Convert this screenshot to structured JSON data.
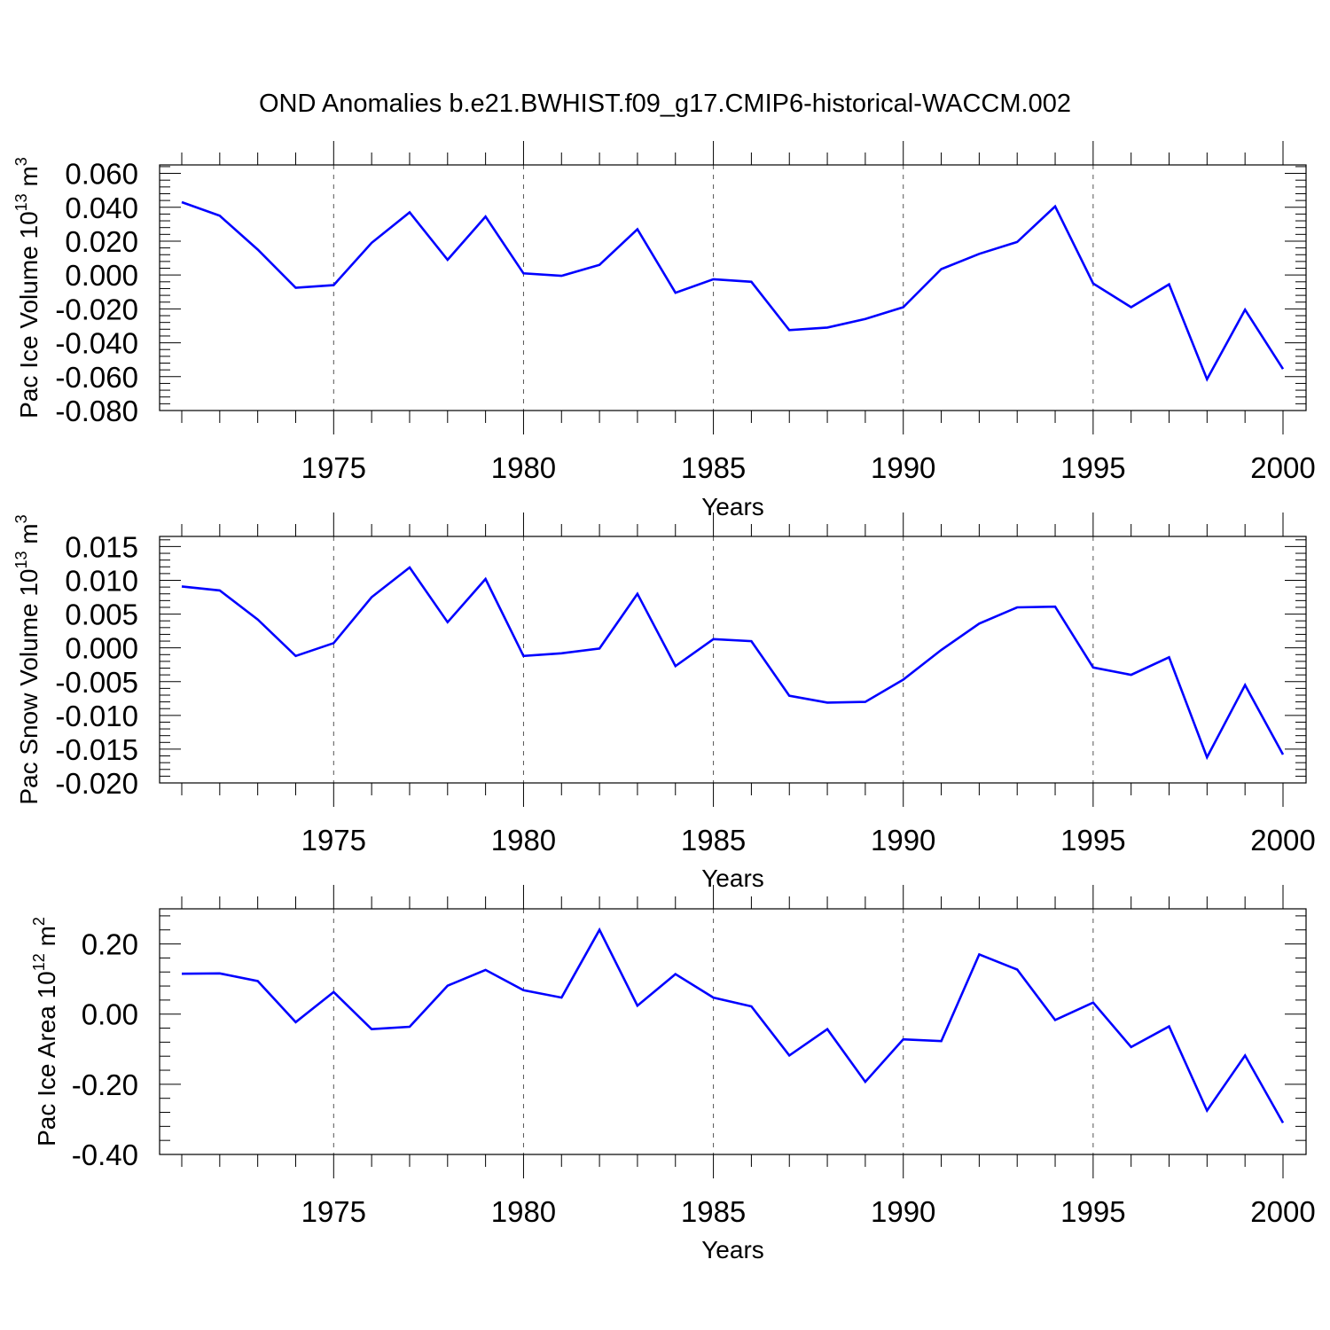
{
  "title": "OND Anomalies b.e21.BWHIST.f09_g17.CMIP6-historical-WACCM.002",
  "line_color": "#0000ff",
  "chart_data": [
    {
      "type": "line",
      "ylabel": {
        "text": "Pac Ice Volume 10",
        "exp": "13",
        "unit": " m",
        "unit_exp": "3"
      },
      "xlabel": "Years",
      "xlim": [
        1971,
        2000
      ],
      "ylim": [
        -0.08,
        0.065
      ],
      "ytick_values": [
        0.06,
        0.04,
        0.02,
        0.0,
        -0.02,
        -0.04,
        -0.06,
        -0.08
      ],
      "ytick_labels": [
        "0.060",
        "0.040",
        "0.020",
        "0.000",
        "-0.020",
        "-0.040",
        "-0.060",
        "-0.080"
      ],
      "xtick_values": [
        1975,
        1980,
        1985,
        1990,
        1995,
        2000
      ],
      "xtick_labels": [
        "1975",
        "1980",
        "1985",
        "1990",
        "1995",
        "2000"
      ],
      "x": [
        1971,
        1972,
        1973,
        1974,
        1975,
        1976,
        1977,
        1978,
        1979,
        1980,
        1981,
        1982,
        1983,
        1984,
        1985,
        1986,
        1987,
        1988,
        1989,
        1990,
        1991,
        1992,
        1993,
        1994,
        1995,
        1996,
        1997,
        1998,
        1999,
        2000
      ],
      "values": [
        0.043,
        0.035,
        0.015,
        -0.0075,
        -0.006,
        0.019,
        0.037,
        0.009,
        0.0345,
        0.001,
        -0.0005,
        0.006,
        0.027,
        -0.0105,
        -0.0025,
        -0.004,
        -0.0325,
        -0.031,
        -0.026,
        -0.019,
        0.0035,
        0.0125,
        0.0195,
        0.0405,
        -0.005,
        -0.019,
        -0.0055,
        -0.0615,
        -0.0205,
        -0.0555
      ]
    },
    {
      "type": "line",
      "ylabel": {
        "text": "Pac Snow Volume 10",
        "exp": "13",
        "unit": " m",
        "unit_exp": "3"
      },
      "xlabel": "Years",
      "xlim": [
        1971,
        2000
      ],
      "ylim": [
        -0.02,
        0.0165
      ],
      "ytick_values": [
        0.015,
        0.01,
        0.005,
        0.0,
        -0.005,
        -0.01,
        -0.015,
        -0.02
      ],
      "ytick_labels": [
        "0.015",
        "0.010",
        "0.005",
        "0.000",
        "-0.005",
        "-0.010",
        "-0.015",
        "-0.020"
      ],
      "xtick_values": [
        1975,
        1980,
        1985,
        1990,
        1995,
        2000
      ],
      "xtick_labels": [
        "1975",
        "1980",
        "1985",
        "1990",
        "1995",
        "2000"
      ],
      "x": [
        1971,
        1972,
        1973,
        1974,
        1975,
        1976,
        1977,
        1978,
        1979,
        1980,
        1981,
        1982,
        1983,
        1984,
        1985,
        1986,
        1987,
        1988,
        1989,
        1990,
        1991,
        1992,
        1993,
        1994,
        1995,
        1996,
        1997,
        1998,
        1999,
        2000
      ],
      "values": [
        0.0091,
        0.0085,
        0.0042,
        -0.0012,
        0.0007,
        0.0075,
        0.0119,
        0.0038,
        0.0102,
        -0.0012,
        -0.0008,
        -0.0001,
        0.008,
        -0.0027,
        0.0013,
        0.001,
        -0.0071,
        -0.0081,
        -0.008,
        -0.0047,
        -0.0003,
        0.0036,
        0.006,
        0.0061,
        -0.0029,
        -0.004,
        -0.0014,
        -0.0162,
        -0.0055,
        -0.0158
      ]
    },
    {
      "type": "line",
      "ylabel": {
        "text": "Pac Ice Area 10",
        "exp": "12",
        "unit": " m",
        "unit_exp": "2"
      },
      "xlabel": "Years",
      "xlim": [
        1971,
        2000
      ],
      "ylim": [
        -0.4,
        0.3
      ],
      "ytick_values": [
        0.2,
        0.0,
        -0.2,
        -0.4
      ],
      "ytick_labels": [
        "0.20",
        "0.00",
        "-0.20",
        "-0.40"
      ],
      "xtick_values": [
        1975,
        1980,
        1985,
        1990,
        1995,
        2000
      ],
      "xtick_labels": [
        "1975",
        "1980",
        "1985",
        "1990",
        "1995",
        "2000"
      ],
      "x": [
        1971,
        1972,
        1973,
        1974,
        1975,
        1976,
        1977,
        1978,
        1979,
        1980,
        1981,
        1982,
        1983,
        1984,
        1985,
        1986,
        1987,
        1988,
        1989,
        1990,
        1991,
        1992,
        1993,
        1994,
        1995,
        1996,
        1997,
        1998,
        1999,
        2000
      ],
      "values": [
        0.115,
        0.116,
        0.094,
        -0.023,
        0.063,
        -0.043,
        -0.036,
        0.081,
        0.126,
        0.068,
        0.047,
        0.24,
        0.024,
        0.114,
        0.047,
        0.022,
        -0.118,
        -0.043,
        -0.193,
        -0.072,
        -0.077,
        0.17,
        0.127,
        -0.017,
        0.033,
        -0.094,
        -0.035,
        -0.275,
        -0.118,
        -0.31
      ]
    }
  ]
}
